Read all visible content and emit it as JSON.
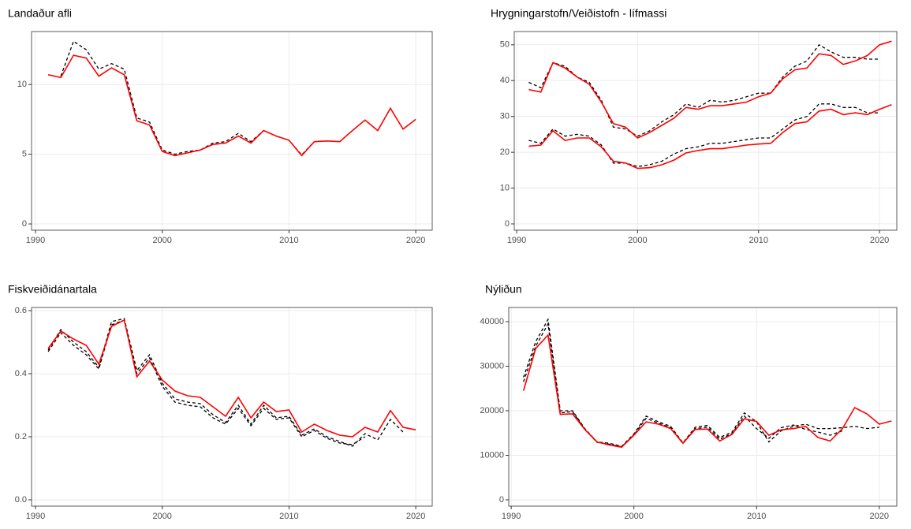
{
  "chart_data": [
    {
      "type": "line",
      "title": "Landaður afli",
      "x": [
        1991,
        1992,
        1993,
        1994,
        1995,
        1996,
        1997,
        1998,
        1999,
        2000,
        2001,
        2002,
        2003,
        2004,
        2005,
        2006,
        2007,
        2008,
        2009,
        2010,
        2011,
        2012,
        2013,
        2014,
        2015,
        2016,
        2017,
        2018,
        2019,
        2020
      ],
      "series": [
        {
          "color": "#000000",
          "linestyle": "dashed",
          "values": [
            null,
            10.6,
            13.1,
            12.5,
            11.1,
            11.5,
            11.1,
            7.6,
            7.3,
            5.3,
            5.0,
            5.2,
            5.3,
            5.8,
            5.9,
            6.5,
            5.9,
            6.7,
            6.3,
            6.0,
            4.95,
            5.9,
            null,
            null,
            null,
            null,
            null,
            null,
            null,
            null
          ]
        },
        {
          "color": "#ff0000",
          "linestyle": "solid",
          "values": [
            10.7,
            10.5,
            12.1,
            11.9,
            10.6,
            11.2,
            10.7,
            7.4,
            7.1,
            5.2,
            4.9,
            5.1,
            5.3,
            5.7,
            5.8,
            6.3,
            5.8,
            6.7,
            6.3,
            6.0,
            4.9,
            5.9,
            5.95,
            5.9,
            6.7,
            7.45,
            6.7,
            8.3,
            6.8,
            7.5
          ]
        }
      ],
      "xlim": [
        1989.69,
        2021.3
      ],
      "xticks": [
        1990,
        2000,
        2010,
        2020
      ],
      "ylim": [
        -0.45,
        13.8
      ],
      "yticks": [
        0,
        5,
        10
      ],
      "grid": true
    },
    {
      "type": "line",
      "title": "Hrygningarstofn/Veiðistofn - lífmassi",
      "x": [
        1991,
        1992,
        1993,
        1994,
        1995,
        1996,
        1997,
        1998,
        1999,
        2000,
        2001,
        2002,
        2003,
        2004,
        2005,
        2006,
        2007,
        2008,
        2009,
        2010,
        2011,
        2012,
        2013,
        2014,
        2015,
        2016,
        2017,
        2018,
        2019,
        2020,
        2021
      ],
      "series": [
        {
          "color": "#000000",
          "linestyle": "dashed",
          "values": [
            39.5,
            38,
            45,
            44,
            41,
            39.5,
            34.5,
            27,
            26.5,
            24.5,
            26,
            28.5,
            30.5,
            33.5,
            32.5,
            34.5,
            34,
            34.5,
            35.5,
            36.5,
            36.5,
            41,
            44,
            45.5,
            50,
            48,
            46.5,
            46.5,
            46,
            46,
            null
          ]
        },
        {
          "color": "#000000",
          "linestyle": "dashed",
          "values": [
            23.3,
            22.5,
            26.5,
            24.5,
            25,
            24.5,
            22,
            17,
            17,
            16,
            16.5,
            17.5,
            19.5,
            21,
            21.5,
            22.5,
            22.5,
            23,
            23.5,
            24,
            24,
            26.5,
            29,
            30,
            33.5,
            33.5,
            32.5,
            32.5,
            31,
            31,
            null
          ]
        },
        {
          "color": "#ff0000",
          "linestyle": "solid",
          "values": [
            37.5,
            36.8,
            45,
            43.5,
            41,
            39,
            34,
            28,
            27,
            24,
            25.5,
            27.5,
            29.5,
            32.5,
            32,
            33,
            33,
            33.5,
            34,
            35.5,
            36.5,
            40.5,
            43,
            43.5,
            47.5,
            47,
            44.5,
            45.5,
            47,
            50,
            51
          ]
        },
        {
          "color": "#ff0000",
          "linestyle": "solid",
          "values": [
            21.7,
            22,
            26,
            23.3,
            24,
            24,
            21.5,
            17.5,
            17,
            15.5,
            15.7,
            16.5,
            17.8,
            19.8,
            20.5,
            21,
            21,
            21.5,
            22,
            22.3,
            22.5,
            25.5,
            28,
            28.5,
            31.5,
            32,
            30.5,
            31,
            30.5,
            32,
            33.3
          ]
        }
      ],
      "xlim": [
        1989.8,
        2021.43
      ],
      "xticks": [
        1990,
        2000,
        2010,
        2020
      ],
      "ylim": [
        -1.76,
        53.7
      ],
      "yticks": [
        0,
        10,
        20,
        30,
        40,
        50
      ],
      "grid": true
    },
    {
      "type": "line",
      "title": "Fiskveiðidánartala",
      "x": [
        1991,
        1992,
        1993,
        1994,
        1995,
        1996,
        1997,
        1998,
        1999,
        2000,
        2001,
        2002,
        2003,
        2004,
        2005,
        2006,
        2007,
        2008,
        2009,
        2010,
        2011,
        2012,
        2013,
        2014,
        2015,
        2016,
        2017,
        2018,
        2019,
        2020
      ],
      "series": [
        {
          "color": "#000000",
          "linestyle": "dashed",
          "values": [
            0.475,
            0.54,
            0.5,
            0.47,
            0.42,
            0.565,
            0.575,
            0.41,
            0.46,
            0.37,
            0.32,
            0.31,
            0.305,
            0.27,
            0.245,
            0.3,
            0.24,
            0.3,
            0.26,
            0.265,
            0.205,
            0.225,
            0.2,
            0.185,
            0.17,
            0.21,
            0.19,
            0.255,
            0.215,
            null
          ]
        },
        {
          "color": "#000000",
          "linestyle": "dashed",
          "values": [
            0.47,
            0.53,
            0.49,
            0.46,
            0.415,
            0.555,
            0.57,
            0.4,
            0.45,
            0.36,
            0.31,
            0.3,
            0.295,
            0.26,
            0.24,
            0.29,
            0.235,
            0.29,
            0.255,
            0.26,
            0.2,
            0.22,
            0.195,
            0.18,
            0.175,
            0.2,
            null,
            null,
            null,
            null
          ]
        },
        {
          "color": "#ff0000",
          "linestyle": "solid",
          "values": [
            0.48,
            0.535,
            0.51,
            0.49,
            0.43,
            0.55,
            0.57,
            0.39,
            0.44,
            0.38,
            0.345,
            0.33,
            0.325,
            0.295,
            0.265,
            0.325,
            0.26,
            0.31,
            0.28,
            0.285,
            0.215,
            0.24,
            0.22,
            0.205,
            0.2,
            0.23,
            0.215,
            0.283,
            0.23,
            0.222
          ]
        }
      ],
      "xlim": [
        1989.69,
        2021.3
      ],
      "xticks": [
        1990,
        2000,
        2010,
        2020
      ],
      "ylim": [
        -0.02,
        0.61
      ],
      "yticks": [
        {
          "value": 0,
          "label": "0.0"
        },
        0.2,
        0.4,
        0.6
      ],
      "grid": true
    },
    {
      "type": "line",
      "title": "Nýliðun",
      "x": [
        1991,
        1992,
        1993,
        1994,
        1995,
        1996,
        1997,
        1998,
        1999,
        2000,
        2001,
        2002,
        2003,
        2004,
        2005,
        2006,
        2007,
        2008,
        2009,
        2010,
        2011,
        2012,
        2013,
        2014,
        2015,
        2016,
        2017,
        2018,
        2019,
        2020,
        2021
      ],
      "series": [
        {
          "color": "#000000",
          "linestyle": "dashed",
          "values": [
            27500,
            35500,
            40500,
            20000,
            20000,
            16000,
            13000,
            12700,
            12000,
            14800,
            18800,
            17500,
            16500,
            12800,
            16300,
            16700,
            14000,
            15200,
            19500,
            17500,
            13000,
            15500,
            16500,
            17000,
            16000,
            16000,
            16200,
            16500,
            16000,
            16300,
            null
          ]
        },
        {
          "color": "#000000",
          "linestyle": "dashed",
          "values": [
            26500,
            34500,
            39500,
            19500,
            19800,
            15800,
            12900,
            12500,
            11900,
            14600,
            18300,
            17200,
            16200,
            12600,
            16000,
            16300,
            13600,
            14900,
            18800,
            16000,
            13800,
            16200,
            16800,
            15800,
            15200,
            14500,
            15500,
            null,
            null,
            null,
            null
          ]
        },
        {
          "color": "#ff0000",
          "linestyle": "solid",
          "values": [
            24500,
            34000,
            37000,
            19200,
            19300,
            15800,
            13000,
            12300,
            11800,
            14500,
            17500,
            17000,
            16000,
            12700,
            15800,
            15900,
            13200,
            14700,
            18200,
            17600,
            14500,
            15700,
            16000,
            16500,
            14000,
            13200,
            16000,
            20700,
            19300,
            17000,
            17700
          ]
        }
      ],
      "xlim": [
        1989.8,
        2021.43
      ],
      "xticks": [
        1990,
        2000,
        2010,
        2020
      ],
      "ylim": [
        -1416,
        43186
      ],
      "yticks": [
        0,
        10000,
        20000,
        30000,
        40000
      ],
      "grid": true
    }
  ]
}
